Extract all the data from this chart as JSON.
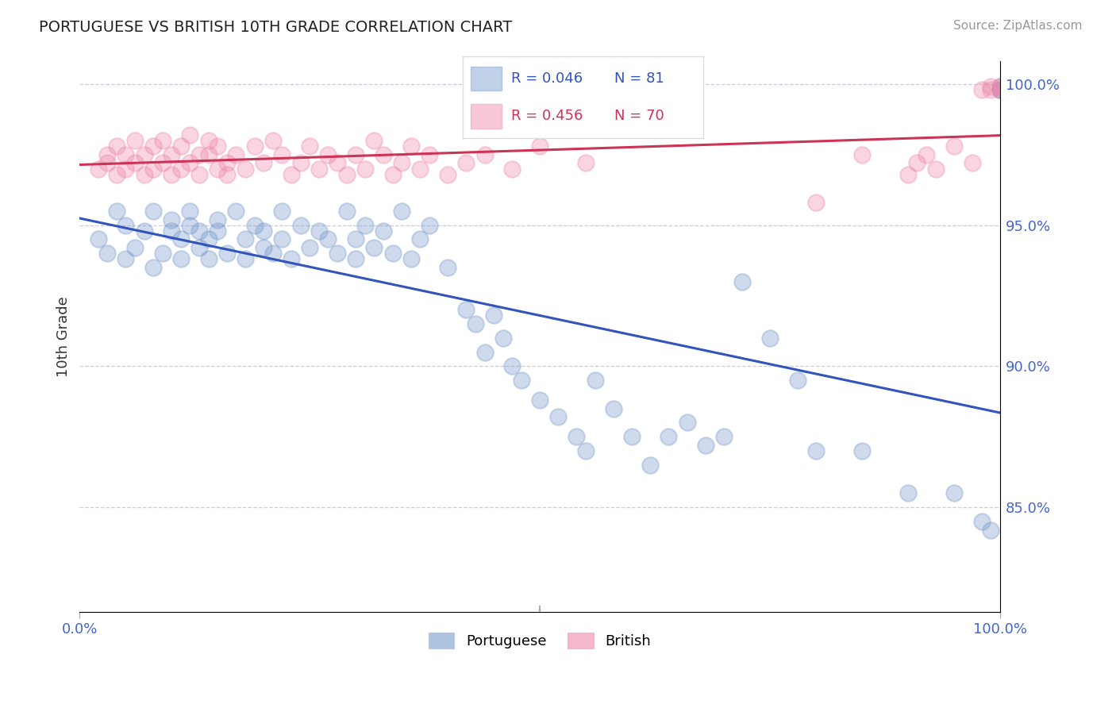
{
  "title": "PORTUGUESE VS BRITISH 10TH GRADE CORRELATION CHART",
  "source": "Source: ZipAtlas.com",
  "ylabel": "10th Grade",
  "xlim": [
    0.0,
    1.0
  ],
  "ylim": [
    0.813,
    1.008
  ],
  "yticks": [
    0.85,
    0.9,
    0.95,
    1.0
  ],
  "ytick_labels": [
    "85.0%",
    "90.0%",
    "95.0%",
    "100.0%"
  ],
  "xtick_labels": [
    "0.0%",
    "100.0%"
  ],
  "xticks": [
    0.0,
    1.0
  ],
  "portuguese_color": "#7799cc",
  "british_color": "#ee88aa",
  "trend_blue": "#3355bb",
  "trend_pink": "#cc3355",
  "legend_R_blue": "R = 0.046",
  "legend_N_blue": "N = 81",
  "legend_R_pink": "R = 0.456",
  "legend_N_pink": "N = 70",
  "grid_color": "#ccccdd",
  "bg_color": "#ffffff",
  "title_color": "#222222",
  "axis_label_color": "#333333",
  "tick_color": "#4466cc",
  "source_color": "#999999",
  "portuguese_x": [
    0.02,
    0.03,
    0.04,
    0.05,
    0.05,
    0.06,
    0.07,
    0.08,
    0.08,
    0.09,
    0.1,
    0.1,
    0.11,
    0.11,
    0.12,
    0.12,
    0.13,
    0.13,
    0.14,
    0.14,
    0.15,
    0.15,
    0.16,
    0.17,
    0.18,
    0.18,
    0.19,
    0.2,
    0.2,
    0.21,
    0.22,
    0.22,
    0.23,
    0.24,
    0.25,
    0.26,
    0.27,
    0.28,
    0.29,
    0.3,
    0.3,
    0.31,
    0.32,
    0.33,
    0.34,
    0.35,
    0.36,
    0.37,
    0.38,
    0.4,
    0.42,
    0.43,
    0.44,
    0.45,
    0.46,
    0.47,
    0.48,
    0.5,
    0.52,
    0.54,
    0.55,
    0.56,
    0.58,
    0.6,
    0.62,
    0.64,
    0.66,
    0.68,
    0.7,
    0.72,
    0.75,
    0.78,
    0.8,
    0.85,
    0.9,
    0.95,
    0.98,
    0.99,
    1.0,
    1.0,
    1.0
  ],
  "portuguese_y": [
    0.945,
    0.94,
    0.955,
    0.938,
    0.95,
    0.942,
    0.948,
    0.955,
    0.935,
    0.94,
    0.952,
    0.948,
    0.945,
    0.938,
    0.95,
    0.955,
    0.942,
    0.948,
    0.945,
    0.938,
    0.952,
    0.948,
    0.94,
    0.955,
    0.945,
    0.938,
    0.95,
    0.942,
    0.948,
    0.94,
    0.945,
    0.955,
    0.938,
    0.95,
    0.942,
    0.948,
    0.945,
    0.94,
    0.955,
    0.938,
    0.945,
    0.95,
    0.942,
    0.948,
    0.94,
    0.955,
    0.938,
    0.945,
    0.95,
    0.935,
    0.92,
    0.915,
    0.905,
    0.918,
    0.91,
    0.9,
    0.895,
    0.888,
    0.882,
    0.875,
    0.87,
    0.895,
    0.885,
    0.875,
    0.865,
    0.875,
    0.88,
    0.872,
    0.875,
    0.93,
    0.91,
    0.895,
    0.87,
    0.87,
    0.855,
    0.855,
    0.845,
    0.842,
    0.998,
    0.998,
    0.999
  ],
  "british_x": [
    0.02,
    0.03,
    0.03,
    0.04,
    0.04,
    0.05,
    0.05,
    0.06,
    0.06,
    0.07,
    0.07,
    0.08,
    0.08,
    0.09,
    0.09,
    0.1,
    0.1,
    0.11,
    0.11,
    0.12,
    0.12,
    0.13,
    0.13,
    0.14,
    0.14,
    0.15,
    0.15,
    0.16,
    0.16,
    0.17,
    0.18,
    0.19,
    0.2,
    0.21,
    0.22,
    0.23,
    0.24,
    0.25,
    0.26,
    0.27,
    0.28,
    0.29,
    0.3,
    0.31,
    0.32,
    0.33,
    0.34,
    0.35,
    0.36,
    0.37,
    0.38,
    0.4,
    0.42,
    0.44,
    0.47,
    0.5,
    0.55,
    0.8,
    0.85,
    0.9,
    0.91,
    0.92,
    0.93,
    0.95,
    0.97,
    0.98,
    0.99,
    0.99,
    1.0,
    1.0
  ],
  "british_y": [
    0.97,
    0.972,
    0.975,
    0.968,
    0.978,
    0.97,
    0.975,
    0.972,
    0.98,
    0.968,
    0.975,
    0.97,
    0.978,
    0.972,
    0.98,
    0.968,
    0.975,
    0.97,
    0.978,
    0.972,
    0.982,
    0.975,
    0.968,
    0.98,
    0.975,
    0.97,
    0.978,
    0.972,
    0.968,
    0.975,
    0.97,
    0.978,
    0.972,
    0.98,
    0.975,
    0.968,
    0.972,
    0.978,
    0.97,
    0.975,
    0.972,
    0.968,
    0.975,
    0.97,
    0.98,
    0.975,
    0.968,
    0.972,
    0.978,
    0.97,
    0.975,
    0.968,
    0.972,
    0.975,
    0.97,
    0.978,
    0.972,
    0.958,
    0.975,
    0.968,
    0.972,
    0.975,
    0.97,
    0.978,
    0.972,
    0.998,
    0.998,
    0.999,
    0.998,
    0.999
  ]
}
